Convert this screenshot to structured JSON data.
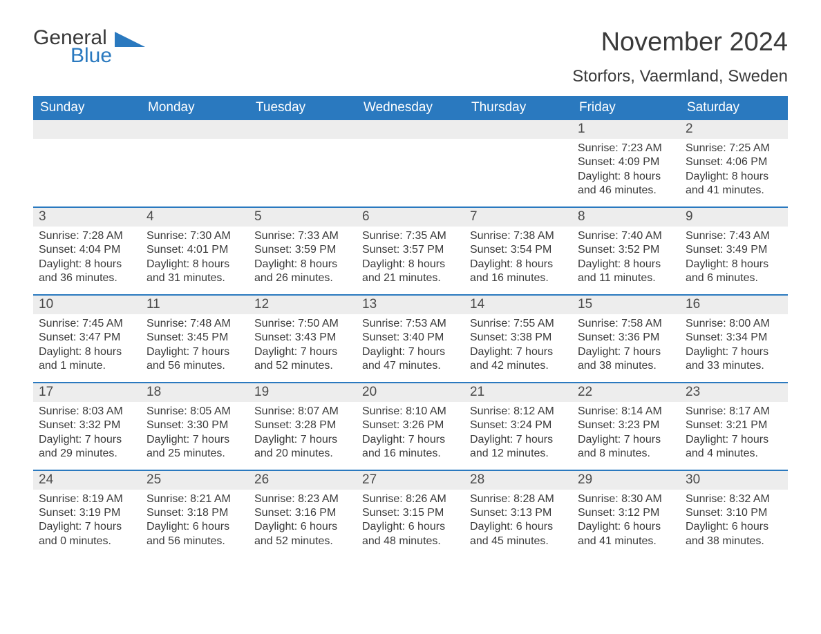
{
  "logo": {
    "general": "General",
    "blue": "Blue",
    "triangle_color": "#2a79bf"
  },
  "title": "November 2024",
  "location": "Storfors, Vaermland, Sweden",
  "colors": {
    "header_bg": "#2a79bf",
    "header_text": "#ffffff",
    "daynum_bg": "#ededed",
    "text": "#3a3a3a",
    "rule": "#2a79bf",
    "background": "#ffffff"
  },
  "day_names": [
    "Sunday",
    "Monday",
    "Tuesday",
    "Wednesday",
    "Thursday",
    "Friday",
    "Saturday"
  ],
  "weeks": [
    [
      null,
      null,
      null,
      null,
      null,
      {
        "n": "1",
        "sunrise": "Sunrise: 7:23 AM",
        "sunset": "Sunset: 4:09 PM",
        "dl1": "Daylight: 8 hours",
        "dl2": "and 46 minutes."
      },
      {
        "n": "2",
        "sunrise": "Sunrise: 7:25 AM",
        "sunset": "Sunset: 4:06 PM",
        "dl1": "Daylight: 8 hours",
        "dl2": "and 41 minutes."
      }
    ],
    [
      {
        "n": "3",
        "sunrise": "Sunrise: 7:28 AM",
        "sunset": "Sunset: 4:04 PM",
        "dl1": "Daylight: 8 hours",
        "dl2": "and 36 minutes."
      },
      {
        "n": "4",
        "sunrise": "Sunrise: 7:30 AM",
        "sunset": "Sunset: 4:01 PM",
        "dl1": "Daylight: 8 hours",
        "dl2": "and 31 minutes."
      },
      {
        "n": "5",
        "sunrise": "Sunrise: 7:33 AM",
        "sunset": "Sunset: 3:59 PM",
        "dl1": "Daylight: 8 hours",
        "dl2": "and 26 minutes."
      },
      {
        "n": "6",
        "sunrise": "Sunrise: 7:35 AM",
        "sunset": "Sunset: 3:57 PM",
        "dl1": "Daylight: 8 hours",
        "dl2": "and 21 minutes."
      },
      {
        "n": "7",
        "sunrise": "Sunrise: 7:38 AM",
        "sunset": "Sunset: 3:54 PM",
        "dl1": "Daylight: 8 hours",
        "dl2": "and 16 minutes."
      },
      {
        "n": "8",
        "sunrise": "Sunrise: 7:40 AM",
        "sunset": "Sunset: 3:52 PM",
        "dl1": "Daylight: 8 hours",
        "dl2": "and 11 minutes."
      },
      {
        "n": "9",
        "sunrise": "Sunrise: 7:43 AM",
        "sunset": "Sunset: 3:49 PM",
        "dl1": "Daylight: 8 hours",
        "dl2": "and 6 minutes."
      }
    ],
    [
      {
        "n": "10",
        "sunrise": "Sunrise: 7:45 AM",
        "sunset": "Sunset: 3:47 PM",
        "dl1": "Daylight: 8 hours",
        "dl2": "and 1 minute."
      },
      {
        "n": "11",
        "sunrise": "Sunrise: 7:48 AM",
        "sunset": "Sunset: 3:45 PM",
        "dl1": "Daylight: 7 hours",
        "dl2": "and 56 minutes."
      },
      {
        "n": "12",
        "sunrise": "Sunrise: 7:50 AM",
        "sunset": "Sunset: 3:43 PM",
        "dl1": "Daylight: 7 hours",
        "dl2": "and 52 minutes."
      },
      {
        "n": "13",
        "sunrise": "Sunrise: 7:53 AM",
        "sunset": "Sunset: 3:40 PM",
        "dl1": "Daylight: 7 hours",
        "dl2": "and 47 minutes."
      },
      {
        "n": "14",
        "sunrise": "Sunrise: 7:55 AM",
        "sunset": "Sunset: 3:38 PM",
        "dl1": "Daylight: 7 hours",
        "dl2": "and 42 minutes."
      },
      {
        "n": "15",
        "sunrise": "Sunrise: 7:58 AM",
        "sunset": "Sunset: 3:36 PM",
        "dl1": "Daylight: 7 hours",
        "dl2": "and 38 minutes."
      },
      {
        "n": "16",
        "sunrise": "Sunrise: 8:00 AM",
        "sunset": "Sunset: 3:34 PM",
        "dl1": "Daylight: 7 hours",
        "dl2": "and 33 minutes."
      }
    ],
    [
      {
        "n": "17",
        "sunrise": "Sunrise: 8:03 AM",
        "sunset": "Sunset: 3:32 PM",
        "dl1": "Daylight: 7 hours",
        "dl2": "and 29 minutes."
      },
      {
        "n": "18",
        "sunrise": "Sunrise: 8:05 AM",
        "sunset": "Sunset: 3:30 PM",
        "dl1": "Daylight: 7 hours",
        "dl2": "and 25 minutes."
      },
      {
        "n": "19",
        "sunrise": "Sunrise: 8:07 AM",
        "sunset": "Sunset: 3:28 PM",
        "dl1": "Daylight: 7 hours",
        "dl2": "and 20 minutes."
      },
      {
        "n": "20",
        "sunrise": "Sunrise: 8:10 AM",
        "sunset": "Sunset: 3:26 PM",
        "dl1": "Daylight: 7 hours",
        "dl2": "and 16 minutes."
      },
      {
        "n": "21",
        "sunrise": "Sunrise: 8:12 AM",
        "sunset": "Sunset: 3:24 PM",
        "dl1": "Daylight: 7 hours",
        "dl2": "and 12 minutes."
      },
      {
        "n": "22",
        "sunrise": "Sunrise: 8:14 AM",
        "sunset": "Sunset: 3:23 PM",
        "dl1": "Daylight: 7 hours",
        "dl2": "and 8 minutes."
      },
      {
        "n": "23",
        "sunrise": "Sunrise: 8:17 AM",
        "sunset": "Sunset: 3:21 PM",
        "dl1": "Daylight: 7 hours",
        "dl2": "and 4 minutes."
      }
    ],
    [
      {
        "n": "24",
        "sunrise": "Sunrise: 8:19 AM",
        "sunset": "Sunset: 3:19 PM",
        "dl1": "Daylight: 7 hours",
        "dl2": "and 0 minutes."
      },
      {
        "n": "25",
        "sunrise": "Sunrise: 8:21 AM",
        "sunset": "Sunset: 3:18 PM",
        "dl1": "Daylight: 6 hours",
        "dl2": "and 56 minutes."
      },
      {
        "n": "26",
        "sunrise": "Sunrise: 8:23 AM",
        "sunset": "Sunset: 3:16 PM",
        "dl1": "Daylight: 6 hours",
        "dl2": "and 52 minutes."
      },
      {
        "n": "27",
        "sunrise": "Sunrise: 8:26 AM",
        "sunset": "Sunset: 3:15 PM",
        "dl1": "Daylight: 6 hours",
        "dl2": "and 48 minutes."
      },
      {
        "n": "28",
        "sunrise": "Sunrise: 8:28 AM",
        "sunset": "Sunset: 3:13 PM",
        "dl1": "Daylight: 6 hours",
        "dl2": "and 45 minutes."
      },
      {
        "n": "29",
        "sunrise": "Sunrise: 8:30 AM",
        "sunset": "Sunset: 3:12 PM",
        "dl1": "Daylight: 6 hours",
        "dl2": "and 41 minutes."
      },
      {
        "n": "30",
        "sunrise": "Sunrise: 8:32 AM",
        "sunset": "Sunset: 3:10 PM",
        "dl1": "Daylight: 6 hours",
        "dl2": "and 38 minutes."
      }
    ]
  ]
}
